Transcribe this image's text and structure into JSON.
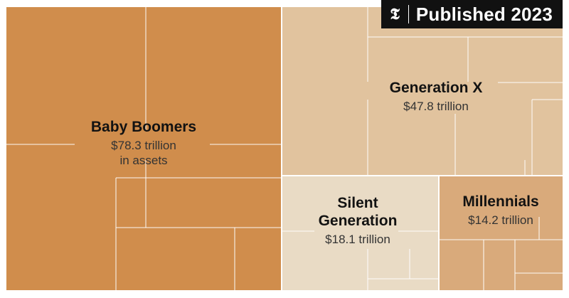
{
  "badge": {
    "logo": "𝕿",
    "text": "Published 2023"
  },
  "chart_data": {
    "type": "treemap",
    "title": "",
    "unit": "trillion",
    "series": [
      {
        "name": "Baby Boomers",
        "value": 78.3,
        "value_label": "$78.3 trillion",
        "sublabel": "in assets",
        "color": "#d08d4c"
      },
      {
        "name": "Generation X",
        "value": 47.8,
        "value_label": "$47.8 trillion",
        "sublabel": "",
        "color": "#e1c39e"
      },
      {
        "name": "Silent Generation",
        "value": 18.1,
        "value_label": "$18.1 trillion",
        "sublabel": "",
        "color": "#e9dbc5"
      },
      {
        "name": "Millennials",
        "value": 14.2,
        "value_label": "$14.2 trillion",
        "sublabel": "",
        "color": "#d9aa7b"
      }
    ]
  }
}
